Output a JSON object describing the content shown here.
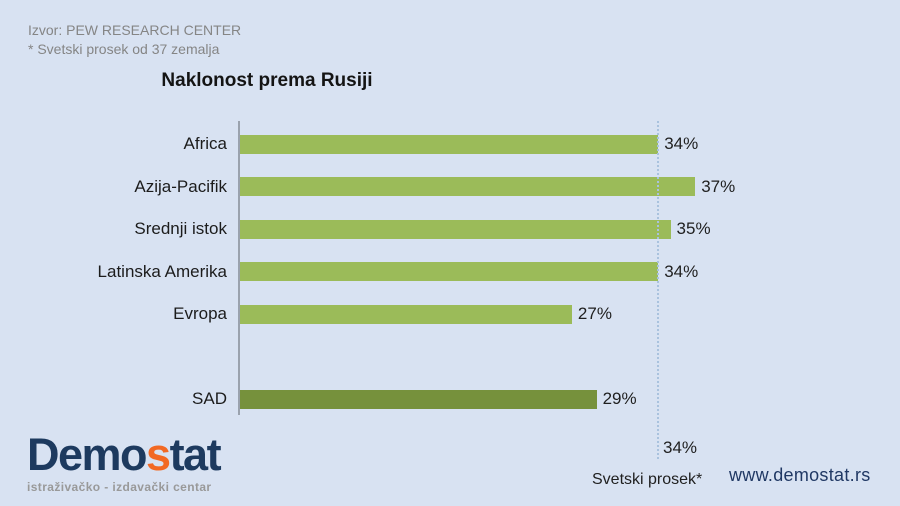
{
  "source": {
    "line1": "Izvor: PEW RESEARCH CENTER",
    "line2": "* Svetski prosek od 37 zemalja"
  },
  "chart_data": {
    "type": "bar",
    "orientation": "horizontal",
    "title": "Naklonost prema Rusiji",
    "categories": [
      "Africa",
      "Azija-Pacifik",
      "Srednji istok",
      "Latinska Amerika",
      "Evropa",
      "SAD"
    ],
    "values": [
      34,
      37,
      35,
      34,
      27,
      29
    ],
    "value_labels": [
      "34%",
      "37%",
      "35%",
      "34%",
      "27%",
      "29%"
    ],
    "unit": "%",
    "xlim": [
      0,
      54
    ],
    "grid": false,
    "average_line": {
      "value": 34,
      "value_label": "34%",
      "caption": "Svetski prosek*"
    },
    "bar_color": "#9BBB59",
    "us_bar_color": "#76913C",
    "highlight_category": "SAD"
  },
  "footer": {
    "website": "www.demostat.rs"
  },
  "logo": {
    "part1": "Demo",
    "accent": "s",
    "part2": "tat",
    "subtitle": "istraživačko - izdavački  centar"
  },
  "colors": {
    "background": "#D8E2F2",
    "bar_green": "#9BBB59",
    "bar_dark_green": "#76913C",
    "navy": "#1D3A5F",
    "orange": "#F26924",
    "source_gray": "#858585"
  }
}
